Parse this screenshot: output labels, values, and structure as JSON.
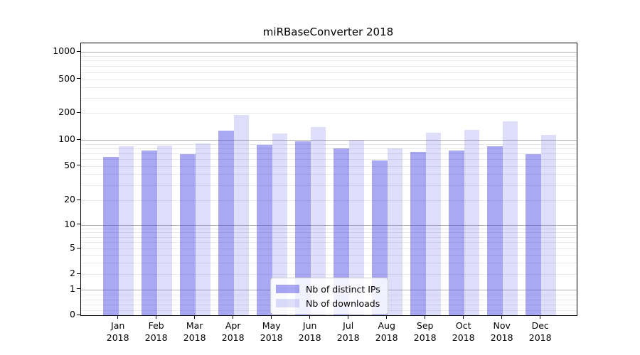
{
  "chart_data": {
    "type": "bar",
    "title": "miRBaseConverter 2018",
    "categories": [
      {
        "month": "Jan",
        "year": "2018"
      },
      {
        "month": "Feb",
        "year": "2018"
      },
      {
        "month": "Mar",
        "year": "2018"
      },
      {
        "month": "Apr",
        "year": "2018"
      },
      {
        "month": "May",
        "year": "2018"
      },
      {
        "month": "Jun",
        "year": "2018"
      },
      {
        "month": "Jul",
        "year": "2018"
      },
      {
        "month": "Aug",
        "year": "2018"
      },
      {
        "month": "Sep",
        "year": "2018"
      },
      {
        "month": "Oct",
        "year": "2018"
      },
      {
        "month": "Nov",
        "year": "2018"
      },
      {
        "month": "Dec",
        "year": "2018"
      }
    ],
    "series": [
      {
        "name": "Nb of distinct IPs",
        "color": "rgba(47,47,226,0.42)",
        "values": [
          63,
          75,
          69,
          127,
          87,
          96,
          80,
          58,
          72,
          75,
          84,
          69
        ]
      },
      {
        "name": "Nb of downloads",
        "color": "rgba(47,47,226,0.16)",
        "values": [
          85,
          86,
          91,
          190,
          118,
          140,
          100,
          79,
          120,
          130,
          162,
          114
        ]
      }
    ],
    "y_axis": {
      "scale": "symlog",
      "ticks": [
        {
          "label": "0",
          "value": 0
        },
        {
          "label": "1",
          "value": 1
        },
        {
          "label": "2",
          "value": 2
        },
        {
          "label": "5",
          "value": 5
        },
        {
          "label": "10",
          "value": 10
        },
        {
          "label": "20",
          "value": 20
        },
        {
          "label": "50",
          "value": 50
        },
        {
          "label": "100",
          "value": 100
        },
        {
          "label": "200",
          "value": 200
        },
        {
          "label": "500",
          "value": 500
        },
        {
          "label": "1000",
          "value": 1000
        }
      ],
      "major_gridlines": [
        1,
        10,
        100,
        1000
      ],
      "minor_gridlines": [
        0.2,
        0.4,
        0.6,
        0.8,
        2,
        3,
        4,
        5,
        6,
        7,
        8,
        9,
        20,
        30,
        40,
        50,
        60,
        70,
        80,
        90,
        200,
        300,
        400,
        500,
        600,
        700,
        800,
        900
      ],
      "range": [
        0,
        1000
      ]
    },
    "legend": {
      "position": "lower-center-inside",
      "entries": [
        "Nb of distinct IPs",
        "Nb of downloads"
      ]
    },
    "colors": {
      "grid_major": "#b0b0b0",
      "grid_minor": "#e9e9e9",
      "spine": "#000000",
      "background": "#ffffff",
      "text": "#000000"
    },
    "grid": true
  }
}
